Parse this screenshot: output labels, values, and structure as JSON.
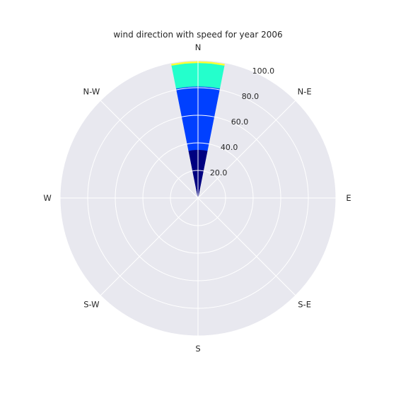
{
  "chart_data": {
    "type": "bar",
    "subtype": "wind-rose",
    "title": "wind direction with speed for year 2006",
    "directions": [
      "N",
      "N-E",
      "E",
      "S-E",
      "S",
      "S-W",
      "W",
      "N-W"
    ],
    "radial_ticks": [
      "20.0",
      "40.0",
      "60.0",
      "80.0",
      "100.0"
    ],
    "radial_ticks_values": [
      20,
      40,
      60,
      80,
      100
    ],
    "rlim": [
      0,
      100
    ],
    "grid": true,
    "stacked": true,
    "sector_direction": "N",
    "sector_width_deg": 22.5,
    "bins": [
      {
        "color": "#000080",
        "from": 0,
        "to": 20
      },
      {
        "color": "#000080",
        "from": 20,
        "to": 35
      },
      {
        "color": "#0040ff",
        "from": 35,
        "to": 60
      },
      {
        "color": "#0040ff",
        "from": 60,
        "to": 80
      },
      {
        "color": "#0040ff",
        "from": 80,
        "to": 81
      },
      {
        "color": "#24ffcc",
        "from": 81,
        "to": 98
      },
      {
        "color": "#ffff33",
        "from": 98,
        "to": 99
      }
    ],
    "colors": {
      "background": "#e8e8ef",
      "grid": "#ffffff"
    }
  }
}
